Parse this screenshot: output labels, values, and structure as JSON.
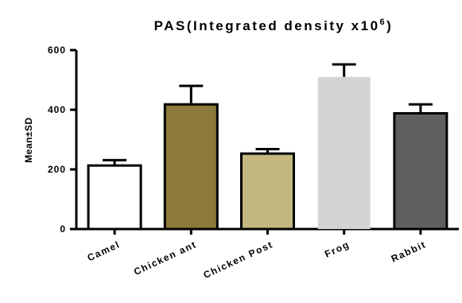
{
  "chart_data": {
    "type": "bar",
    "title": {
      "base": "PAS(Integrated density x10",
      "superscript": "6",
      "close": ")"
    },
    "ylabel": "Mean±SD",
    "xlabel": "",
    "ylim": [
      0,
      600
    ],
    "yticks": [
      "0",
      "200",
      "400",
      "600"
    ],
    "categories": [
      "Camel",
      "Chicken ant",
      "Chicken Post",
      "Frog",
      "Rabbit"
    ],
    "values": [
      213,
      418,
      253,
      510,
      388
    ],
    "errors": [
      18,
      62,
      15,
      42,
      30
    ],
    "colors": [
      "#ffffff",
      "#8b7a3a",
      "#c2b880",
      "#d4d4d4",
      "#606060"
    ],
    "grid": false
  }
}
